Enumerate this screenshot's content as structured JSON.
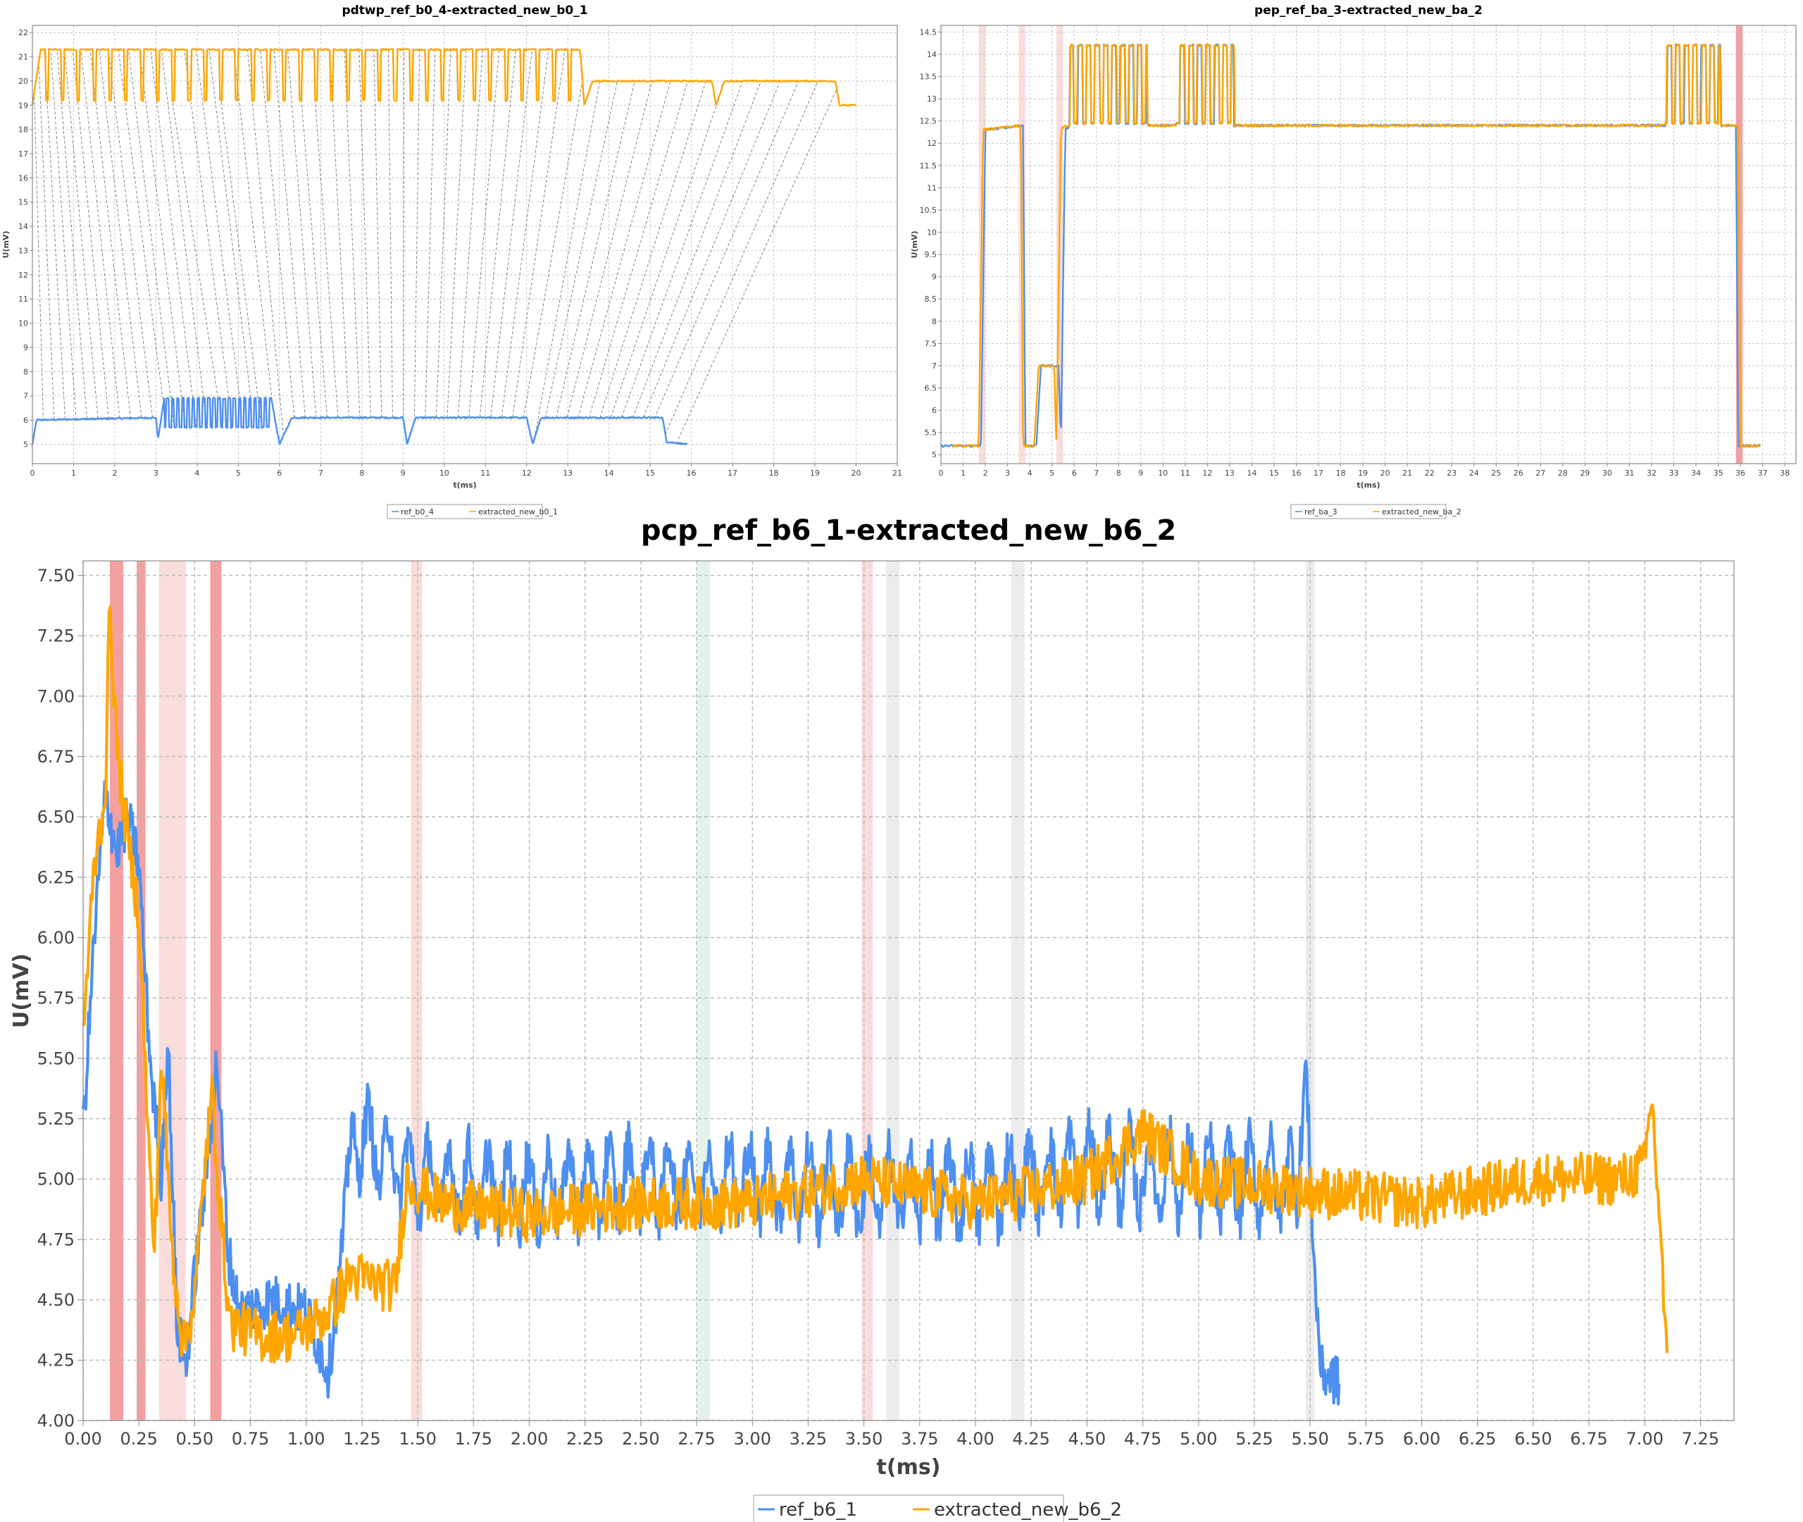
{
  "colors": {
    "ref": "#4d8ff0",
    "extracted": "#ffa500",
    "band_strong": "#f08080",
    "band_light": "#f4c0c0",
    "band_grey": "#dcdcdc",
    "band_green": "#cfe8d8",
    "match_line": "#444444"
  },
  "chart_data": [
    {
      "type": "line",
      "title": "pdtwp_ref_b0_4-extracted_new_b0_1",
      "xlabel": "t(ms)",
      "ylabel": "U(mV)",
      "xlim": [
        0,
        21
      ],
      "ylim": [
        4.2,
        22.3
      ],
      "xticks": [
        0,
        1,
        2,
        3,
        4,
        5,
        6,
        7,
        8,
        9,
        10,
        11,
        12,
        13,
        14,
        15,
        16,
        17,
        18,
        19,
        20,
        21
      ],
      "yticks": [
        5,
        6,
        7,
        8,
        9,
        10,
        11,
        12,
        13,
        14,
        15,
        16,
        17,
        18,
        19,
        20,
        21,
        22
      ],
      "grid": true,
      "legend_position": "bottom",
      "dashed_alignment_lines": true,
      "series": [
        {
          "name": "ref_b0_4",
          "color": "ref",
          "description_points": [
            [
              0,
              5.0
            ],
            [
              0.1,
              6.0
            ],
            [
              3.0,
              6.1
            ],
            [
              3.05,
              5.2
            ],
            [
              3.2,
              6.9
            ],
            [
              5.8,
              6.9
            ],
            [
              6.0,
              5.0
            ],
            [
              6.3,
              6.1
            ],
            [
              9.0,
              6.1
            ],
            [
              9.1,
              5.0
            ],
            [
              9.3,
              6.1
            ],
            [
              12.0,
              6.1
            ],
            [
              12.15,
              5.0
            ],
            [
              12.35,
              6.1
            ],
            [
              15.3,
              6.1
            ],
            [
              15.4,
              5.1
            ],
            [
              15.9,
              5.0
            ]
          ]
        },
        {
          "name": "extracted_new_b0_1",
          "color": "extracted",
          "description_points": [
            [
              0,
              19.0
            ],
            [
              0.2,
              21.3
            ],
            [
              13.3,
              21.3
            ],
            [
              13.4,
              19.0
            ],
            [
              13.6,
              20.0
            ],
            [
              16.5,
              20.0
            ],
            [
              16.6,
              19.0
            ],
            [
              16.8,
              20.0
            ],
            [
              19.5,
              20.0
            ],
            [
              19.6,
              19.0
            ],
            [
              20.0,
              19.0
            ]
          ]
        }
      ]
    },
    {
      "type": "line",
      "title": "pep_ref_ba_3-extracted_new_ba_2",
      "xlabel": "t(ms)",
      "ylabel": "U(mV)",
      "xlim": [
        0,
        38.5
      ],
      "ylim": [
        4.8,
        14.65
      ],
      "xticks": [
        0,
        1,
        2,
        3,
        4,
        5,
        6,
        7,
        8,
        9,
        10,
        11,
        12,
        13,
        14,
        15,
        16,
        17,
        18,
        19,
        20,
        21,
        22,
        23,
        24,
        25,
        26,
        27,
        28,
        29,
        30,
        31,
        32,
        33,
        34,
        35,
        36,
        37,
        38
      ],
      "yticks": [
        5.0,
        5.5,
        6.0,
        6.5,
        7.0,
        7.5,
        8.0,
        8.5,
        9.0,
        9.5,
        10.0,
        10.5,
        11.0,
        11.5,
        12.0,
        12.5,
        13.0,
        13.5,
        14.0,
        14.5
      ],
      "grid": true,
      "legend_position": "bottom",
      "highlight_bands": [
        [
          1.7,
          2.0,
          "light"
        ],
        [
          3.5,
          3.8,
          "light"
        ],
        [
          5.2,
          5.5,
          "light"
        ],
        [
          35.8,
          36.1,
          "strong"
        ]
      ],
      "series": [
        {
          "name": "ref_ba_3",
          "color": "ref",
          "description_points": [
            [
              0,
              5.2
            ],
            [
              1.8,
              5.2
            ],
            [
              2.0,
              12.3
            ],
            [
              3.7,
              12.4
            ],
            [
              3.8,
              5.2
            ],
            [
              4.3,
              5.2
            ],
            [
              4.5,
              7.0
            ],
            [
              5.3,
              7.0
            ],
            [
              5.4,
              5.2
            ],
            [
              5.6,
              12.3
            ],
            [
              5.8,
              12.4
            ],
            [
              13.5,
              12.4
            ],
            [
              33,
              12.4
            ],
            [
              35.8,
              12.4
            ],
            [
              35.9,
              5.2
            ],
            [
              36.9,
              5.2
            ]
          ]
        },
        {
          "name": "extracted_new_ba_2",
          "color": "extracted",
          "description_points": [
            [
              0.5,
              5.2
            ],
            [
              1.7,
              5.2
            ],
            [
              1.9,
              12.3
            ],
            [
              3.6,
              12.4
            ],
            [
              3.7,
              5.2
            ],
            [
              4.2,
              5.2
            ],
            [
              4.4,
              7.0
            ],
            [
              5.1,
              7.0
            ],
            [
              5.2,
              5.2
            ],
            [
              5.4,
              12.3
            ],
            [
              5.6,
              12.4
            ],
            [
              13.5,
              12.4
            ],
            [
              33,
              12.4
            ],
            [
              35.9,
              12.4
            ],
            [
              36.0,
              5.2
            ],
            [
              36.9,
              5.2
            ]
          ]
        }
      ]
    },
    {
      "type": "line",
      "title": "pcp_ref_b6_1-extracted_new_b6_2",
      "xlabel": "t(ms)",
      "ylabel": "U(mV)",
      "xlim": [
        0,
        7.4
      ],
      "ylim": [
        4.0,
        7.56
      ],
      "xticks": [
        "0.00",
        "0.25",
        "0.50",
        "0.75",
        "1.00",
        "1.25",
        "1.50",
        "1.75",
        "2.00",
        "2.25",
        "2.50",
        "2.75",
        "3.00",
        "3.25",
        "3.50",
        "3.75",
        "4.00",
        "4.25",
        "4.50",
        "4.75",
        "5.00",
        "5.25",
        "5.50",
        "5.75",
        "6.00",
        "6.25",
        "6.50",
        "6.75",
        "7.00",
        "7.25"
      ],
      "yticks": [
        "4.00",
        "4.25",
        "4.50",
        "4.75",
        "5.00",
        "5.25",
        "5.50",
        "5.75",
        "6.00",
        "6.25",
        "6.50",
        "6.75",
        "7.00",
        "7.25",
        "7.50"
      ],
      "grid": true,
      "legend_position": "bottom",
      "highlight_bands": [
        [
          0.12,
          0.18,
          "strong"
        ],
        [
          0.24,
          0.28,
          "strong"
        ],
        [
          0.34,
          0.46,
          "light"
        ],
        [
          0.57,
          0.62,
          "strong"
        ],
        [
          1.47,
          1.52,
          "light"
        ],
        [
          2.75,
          2.81,
          "green"
        ],
        [
          3.49,
          3.54,
          "light"
        ],
        [
          3.6,
          3.66,
          "grey"
        ],
        [
          4.16,
          4.22,
          "grey"
        ],
        [
          5.48,
          5.52,
          "grey"
        ]
      ],
      "series": [
        {
          "name": "ref_b6_1",
          "color": "ref",
          "description_points": [
            [
              0,
              5.2
            ],
            [
              0.05,
              6.0
            ],
            [
              0.1,
              6.6
            ],
            [
              0.15,
              6.35
            ],
            [
              0.2,
              6.5
            ],
            [
              0.25,
              6.3
            ],
            [
              0.3,
              5.5
            ],
            [
              0.35,
              5.0
            ],
            [
              0.38,
              5.6
            ],
            [
              0.42,
              4.4
            ],
            [
              0.46,
              4.22
            ],
            [
              0.5,
              4.6
            ],
            [
              0.55,
              5.0
            ],
            [
              0.6,
              5.5
            ],
            [
              0.65,
              4.7
            ],
            [
              0.7,
              4.45
            ],
            [
              0.85,
              4.5
            ],
            [
              1.0,
              4.45
            ],
            [
              1.1,
              4.2
            ],
            [
              1.15,
              4.6
            ],
            [
              1.2,
              5.2
            ],
            [
              1.5,
              5.0
            ],
            [
              2.0,
              4.95
            ],
            [
              2.5,
              5.0
            ],
            [
              3.0,
              5.0
            ],
            [
              3.5,
              4.95
            ],
            [
              4.0,
              4.95
            ],
            [
              4.5,
              5.05
            ],
            [
              5.0,
              5.0
            ],
            [
              5.45,
              5.0
            ],
            [
              5.48,
              5.5
            ],
            [
              5.52,
              4.6
            ],
            [
              5.55,
              4.2
            ],
            [
              5.6,
              4.18
            ],
            [
              5.63,
              4.15
            ]
          ]
        },
        {
          "name": "extracted_new_b6_2",
          "color": "extracted",
          "description_points": [
            [
              0,
              5.6
            ],
            [
              0.05,
              6.3
            ],
            [
              0.1,
              6.6
            ],
            [
              0.12,
              7.4
            ],
            [
              0.15,
              6.8
            ],
            [
              0.2,
              6.4
            ],
            [
              0.25,
              6.1
            ],
            [
              0.3,
              5.0
            ],
            [
              0.32,
              4.7
            ],
            [
              0.35,
              5.5
            ],
            [
              0.4,
              4.7
            ],
            [
              0.45,
              4.3
            ],
            [
              0.5,
              4.5
            ],
            [
              0.55,
              5.1
            ],
            [
              0.58,
              5.35
            ],
            [
              0.62,
              4.8
            ],
            [
              0.66,
              4.4
            ],
            [
              0.8,
              4.35
            ],
            [
              0.95,
              4.35
            ],
            [
              1.1,
              4.45
            ],
            [
              1.2,
              4.6
            ],
            [
              1.4,
              4.55
            ],
            [
              1.45,
              5.0
            ],
            [
              1.6,
              4.9
            ],
            [
              2.0,
              4.85
            ],
            [
              2.5,
              4.9
            ],
            [
              3.0,
              4.9
            ],
            [
              3.5,
              5.0
            ],
            [
              4.0,
              4.9
            ],
            [
              4.5,
              5.0
            ],
            [
              4.75,
              5.2
            ],
            [
              5.0,
              5.0
            ],
            [
              5.5,
              4.95
            ],
            [
              6.0,
              4.9
            ],
            [
              6.5,
              5.0
            ],
            [
              6.9,
              5.0
            ],
            [
              7.0,
              5.05
            ],
            [
              7.03,
              5.35
            ],
            [
              7.07,
              4.8
            ],
            [
              7.1,
              4.2
            ]
          ]
        }
      ]
    }
  ]
}
